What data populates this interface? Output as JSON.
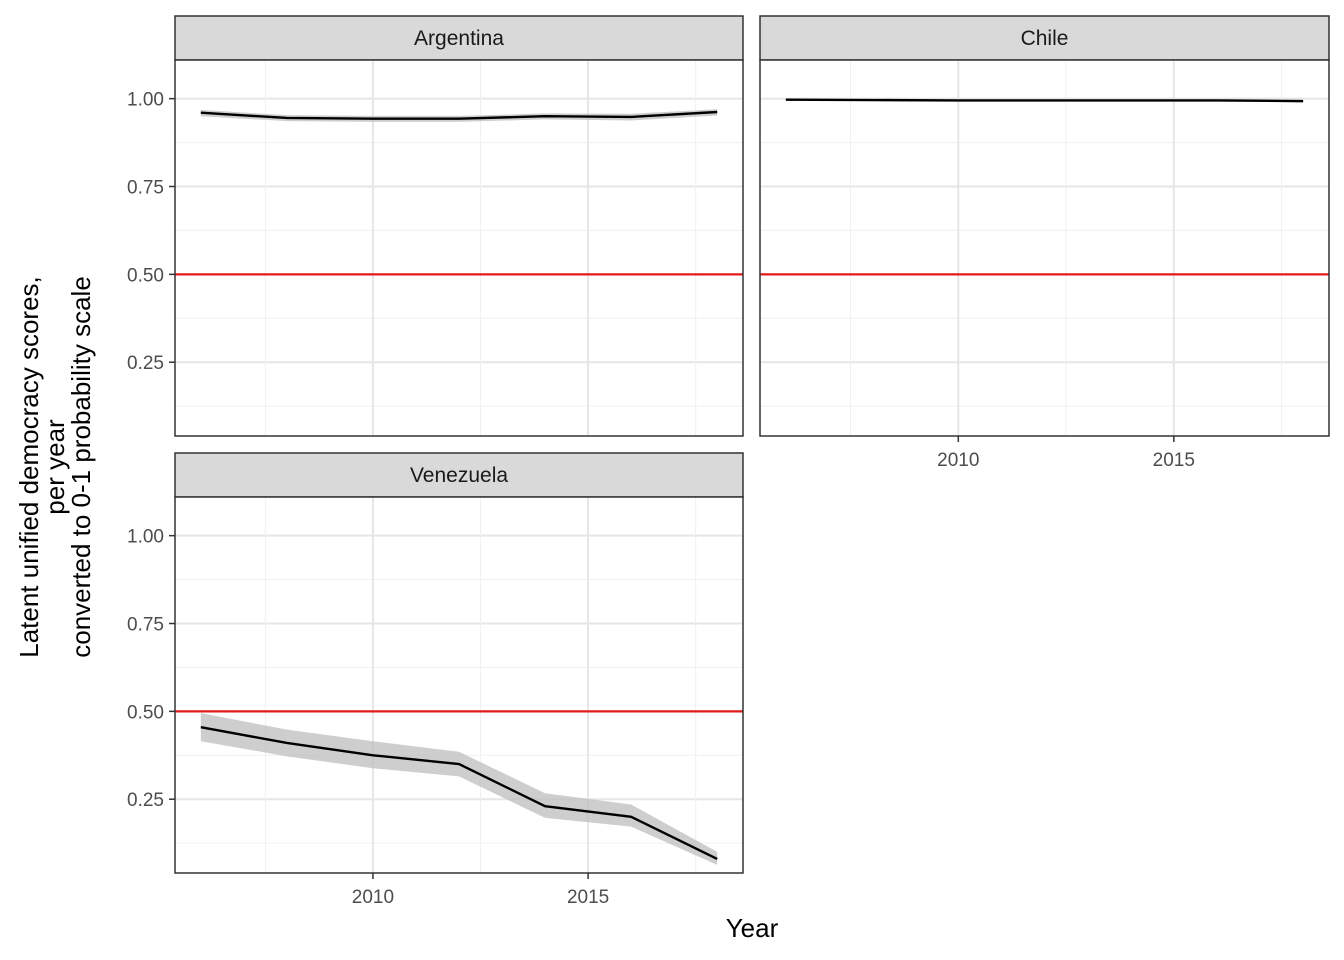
{
  "chart_data": {
    "type": "line",
    "xlabel": "Year",
    "ylabel_lines": [
      "Latent unified democracy scores,",
      "per year",
      "converted to 0-1 probability scale"
    ],
    "x_ticks": [
      2010,
      2015
    ],
    "y_ticks": [
      "0.25",
      "0.50",
      "0.75",
      "1.00"
    ],
    "ylim": [
      0.04,
      1.11
    ],
    "xlim": [
      2005.4,
      2018.6
    ],
    "threshold": 0.5,
    "grid": true,
    "colors": {
      "line": "#000000",
      "ribbon": "#bdbdbd",
      "threshold": "#e31a1c",
      "strip": "#d9d9d9"
    },
    "panels": [
      {
        "title": "Argentina",
        "x": [
          2006,
          2008,
          2010,
          2012,
          2014,
          2016,
          2018
        ],
        "y": [
          0.96,
          0.945,
          0.943,
          0.943,
          0.95,
          0.948,
          0.962
        ],
        "lower": [
          0.95,
          0.936,
          0.934,
          0.934,
          0.941,
          0.938,
          0.952
        ],
        "upper": [
          0.968,
          0.953,
          0.951,
          0.951,
          0.958,
          0.957,
          0.97
        ]
      },
      {
        "title": "Chile",
        "x": [
          2006,
          2008,
          2010,
          2012,
          2014,
          2016,
          2018
        ],
        "y": [
          0.997,
          0.996,
          0.995,
          0.995,
          0.995,
          0.995,
          0.993
        ],
        "lower": [
          0.995,
          0.994,
          0.993,
          0.993,
          0.993,
          0.993,
          0.991
        ],
        "upper": [
          0.999,
          0.998,
          0.997,
          0.997,
          0.997,
          0.997,
          0.995
        ]
      },
      {
        "title": "Venezuela",
        "x": [
          2006,
          2008,
          2010,
          2012,
          2014,
          2016,
          2018
        ],
        "y": [
          0.455,
          0.41,
          0.375,
          0.35,
          0.23,
          0.2,
          0.08
        ],
        "lower": [
          0.415,
          0.372,
          0.338,
          0.315,
          0.197,
          0.172,
          0.063
        ],
        "upper": [
          0.495,
          0.448,
          0.415,
          0.385,
          0.267,
          0.235,
          0.1
        ]
      }
    ]
  }
}
